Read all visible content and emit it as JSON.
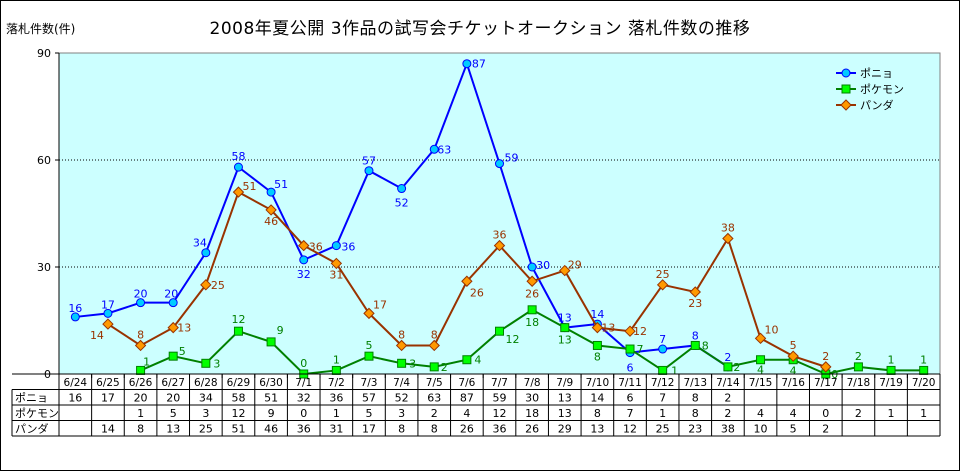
{
  "chart_data": {
    "type": "line",
    "title": "2008年夏公開 3作品の試写会チケットオークション 落札件数の推移",
    "ylabel": "落札件数(件)",
    "xlabel": "",
    "ylim": [
      0,
      90
    ],
    "yticks": [
      0,
      30,
      60,
      90
    ],
    "grid": true,
    "legend_position": "top-right",
    "plot_background": "#ccffff",
    "categories": [
      "6/24",
      "6/25",
      "6/26",
      "6/27",
      "6/28",
      "6/29",
      "6/30",
      "7/1",
      "7/2",
      "7/3",
      "7/4",
      "7/5",
      "7/6",
      "7/7",
      "7/8",
      "7/9",
      "7/10",
      "7/11",
      "7/12",
      "7/13",
      "7/14",
      "7/15",
      "7/16",
      "7/17",
      "7/18",
      "7/19",
      "7/20"
    ],
    "series": [
      {
        "name": "ポニョ",
        "color": "#0000ff",
        "marker": "circle",
        "marker_fill": "#00ccff",
        "label_color": "#0000ff",
        "values": [
          16,
          17,
          20,
          20,
          34,
          58,
          51,
          32,
          36,
          57,
          52,
          63,
          87,
          59,
          30,
          13,
          14,
          6,
          7,
          8,
          2,
          null,
          null,
          null,
          null,
          null,
          null
        ]
      },
      {
        "name": "ポケモン",
        "color": "#008000",
        "marker": "square",
        "marker_fill": "#00ff00",
        "label_color": "#008000",
        "values": [
          null,
          null,
          1,
          5,
          3,
          12,
          9,
          0,
          1,
          5,
          3,
          2,
          4,
          12,
          18,
          13,
          8,
          7,
          1,
          8,
          2,
          4,
          4,
          0,
          2,
          1,
          1
        ]
      },
      {
        "name": "パンダ",
        "color": "#993300",
        "marker": "diamond",
        "marker_fill": "#ff9900",
        "label_color": "#993300",
        "values": [
          null,
          14,
          8,
          13,
          25,
          51,
          46,
          36,
          31,
          17,
          8,
          8,
          26,
          36,
          26,
          29,
          13,
          12,
          25,
          23,
          38,
          10,
          5,
          2,
          null,
          null,
          null
        ]
      }
    ]
  }
}
